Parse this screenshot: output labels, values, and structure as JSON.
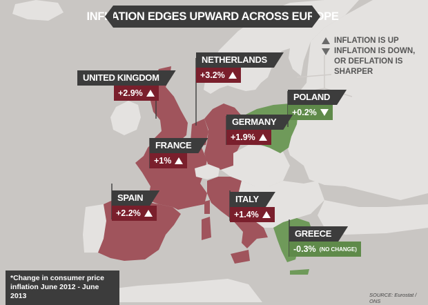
{
  "title": "INFLATION EDGES UPWARD ACROSS EUROPE",
  "legend": {
    "up": "INFLATION IS UP",
    "down_line1": "INFLATION IS DOWN,",
    "down_line2": "OR DEFLATION IS SHARPER"
  },
  "countries": {
    "uk": {
      "name": "UNITED KINGDOM",
      "value": "+2.9%",
      "trend": "up"
    },
    "netherlands": {
      "name": "NETHERLANDS",
      "value": "+3.2%",
      "trend": "up"
    },
    "poland": {
      "name": "POLAND",
      "value": "+0.2%",
      "trend": "down"
    },
    "germany": {
      "name": "GERMANY",
      "value": "+1.9%",
      "trend": "up"
    },
    "france": {
      "name": "FRANCE",
      "value": "+1%",
      "trend": "up"
    },
    "spain": {
      "name": "SPAIN",
      "value": "+2.2%",
      "trend": "up"
    },
    "italy": {
      "name": "ITALY",
      "value": "+1.4%",
      "trend": "up"
    },
    "greece": {
      "name": "GREECE",
      "value": "-0.3%",
      "note": "(NO CHANGE)"
    }
  },
  "footnote_line1": "*Change in consumer price",
  "footnote_line2": "inflation June 2012 - June 2013",
  "source": "SOURCE: Eurostat / ONS",
  "colors": {
    "up": "#a0545c",
    "down": "#6f9a5a",
    "neutral_land": "#e4e2e0",
    "sea": "#c9c6c3",
    "label_bg": "#3c3c3c",
    "value_up_bg": "#7a1f2c",
    "value_down_bg": "#5f8a4a"
  }
}
